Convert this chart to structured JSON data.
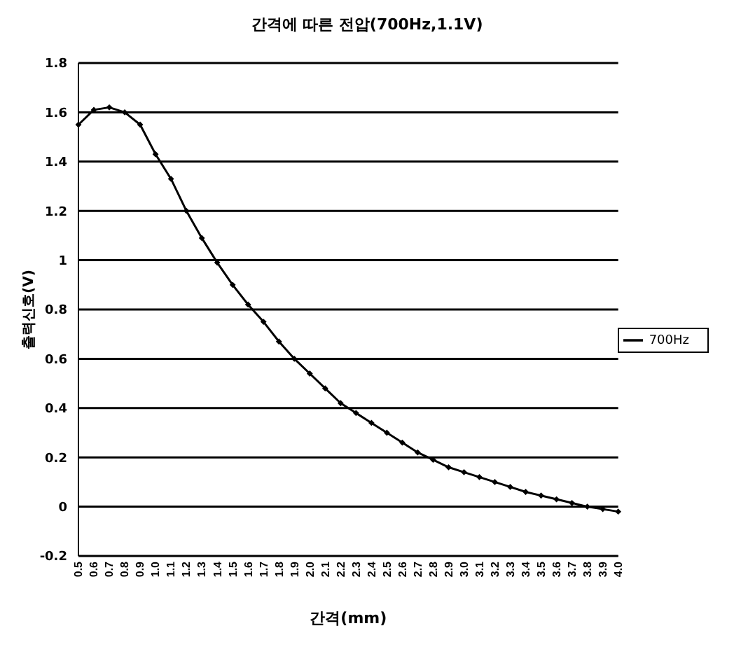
{
  "chart_data": {
    "type": "line",
    "title": "간격에 따른 전압(700Hz,1.1V)",
    "xlabel": "간격(mm)",
    "ylabel": "출력신호(V)",
    "categories": [
      "0.5",
      "0.6",
      "0.7",
      "0.8",
      "0.9",
      "1.0",
      "1.1",
      "1.2",
      "1.3",
      "1.4",
      "1.5",
      "1.6",
      "1.7",
      "1.8",
      "1.9",
      "2.0",
      "2.1",
      "2.2",
      "2.3",
      "2.4",
      "2.5",
      "2.6",
      "2.7",
      "2.8",
      "2.9",
      "3.0",
      "3.1",
      "3.2",
      "3.3",
      "3.4",
      "3.5",
      "3.6",
      "3.7",
      "3.8",
      "3.9",
      "4.0"
    ],
    "series": [
      {
        "name": "700Hz",
        "color": "#000000",
        "values": [
          1.55,
          1.61,
          1.62,
          1.6,
          1.55,
          1.43,
          1.33,
          1.2,
          1.09,
          0.99,
          0.9,
          0.82,
          0.75,
          0.67,
          0.6,
          0.54,
          0.48,
          0.42,
          0.38,
          0.34,
          0.3,
          0.26,
          0.22,
          0.19,
          0.16,
          0.14,
          0.12,
          0.1,
          0.08,
          0.06,
          0.045,
          0.03,
          0.015,
          0,
          -0.01,
          -0.02
        ]
      }
    ],
    "ylim": [
      -0.2,
      1.8
    ],
    "yticks": [
      -0.2,
      0,
      0.2,
      0.4,
      0.6,
      0.8,
      1,
      1.2,
      1.4,
      1.6,
      1.8
    ],
    "grid": "y",
    "legend": "right",
    "marker": "diamond",
    "line_style": "solid"
  }
}
